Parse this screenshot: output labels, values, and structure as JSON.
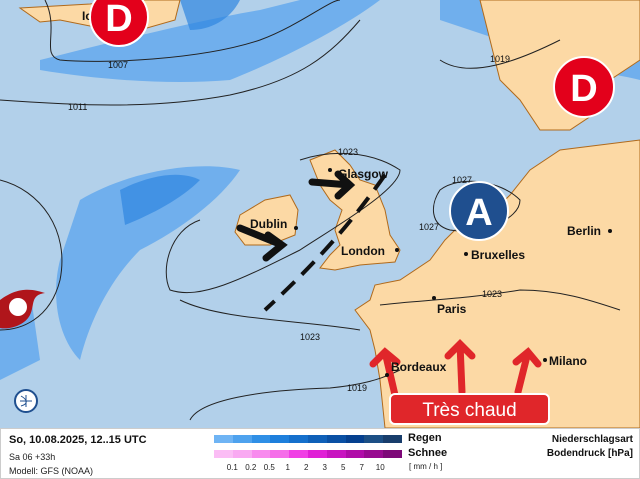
{
  "map": {
    "colors": {
      "ocean": "#b2d0ea",
      "land": "#fcd9a5",
      "coast": "#b06a1c",
      "low": "#e3001b",
      "high": "#1f4f8f",
      "rain": "#3b8ee0"
    },
    "cities": [
      "Ic",
      "Glasgow",
      "Dublin",
      "London",
      "Bruxelles",
      "Berlin",
      "Paris",
      "Bordeaux",
      "Milano"
    ],
    "isobars": [
      "1007",
      "1011",
      "1019",
      "1023",
      "1027",
      "1027",
      "1023",
      "1023",
      "1019"
    ],
    "pressure_systems": {
      "low1": "D",
      "low2": "D",
      "high": "A"
    },
    "icons": {
      "cyclone": "tropical-cyclone-icon",
      "globe": "globe-icon"
    },
    "banner": "Très chaud"
  },
  "footer": {
    "datetime": "So, 10.08.2025, 12..15 UTC",
    "run": "Sa 06 +33h",
    "model": "Modell: GFS (NOAA)",
    "legend_rain": "Regen",
    "legend_snow": "Schnee",
    "rain_colors": [
      "#6fb4f4",
      "#4ea2ee",
      "#2f8fe6",
      "#1e7fdc",
      "#1570cc",
      "#0f60b8",
      "#0a50a4",
      "#05408f",
      "#1c4f85",
      "#183d6b"
    ],
    "snow_colors": [
      "#fbbdf5",
      "#f9a9f2",
      "#f88bee",
      "#f56ee9",
      "#f040e5",
      "#e020d6",
      "#c814c0",
      "#b00ca8",
      "#980a90",
      "#7d0878"
    ],
    "ticks": [
      "0.1",
      "0.2",
      "0.5",
      "1",
      "2",
      "3",
      "5",
      "7",
      "10"
    ],
    "unit": "[ mm / h ]",
    "title1": "Niederschlagsart",
    "title2": "Bodendruck [hPa]"
  }
}
